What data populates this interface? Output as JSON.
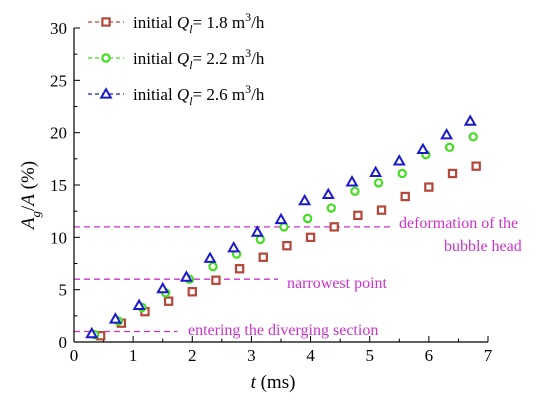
{
  "chart_data": {
    "type": "scatter",
    "xlabel": {
      "italic": "t",
      "unit": " (ms)"
    },
    "ylabel": {
      "A": "A",
      "sub": "g",
      "rest": "/",
      "A2": "A",
      "unit": " (%)"
    },
    "xlim": [
      0,
      7
    ],
    "ylim": [
      0,
      30
    ],
    "xticks": [
      0,
      1,
      2,
      3,
      4,
      5,
      6,
      7
    ],
    "yticks": [
      0,
      5,
      10,
      15,
      20,
      25,
      30
    ],
    "grid": false,
    "legend_position": "top-left",
    "series": [
      {
        "legend": {
          "prefix": "initial ",
          "var": "Q",
          "sub": "l",
          "eq": "= 1.8 m",
          "sup": "3",
          "tail": "/h"
        },
        "marker": "square",
        "color": "#b5473a",
        "x": [
          0.45,
          0.8,
          1.2,
          1.6,
          2.0,
          2.4,
          2.8,
          3.2,
          3.6,
          4.0,
          4.4,
          4.8,
          5.2,
          5.6,
          6.0,
          6.4,
          6.8
        ],
        "y": [
          0.6,
          1.8,
          2.9,
          3.9,
          4.8,
          5.9,
          7.0,
          8.1,
          9.2,
          10.0,
          11.0,
          12.1,
          12.6,
          13.9,
          14.8,
          16.1,
          16.8
        ]
      },
      {
        "legend": {
          "prefix": "initial ",
          "var": "Q",
          "sub": "l",
          "eq": "= 2.2 m",
          "sup": "3",
          "tail": "/h"
        },
        "marker": "circle",
        "color": "#44dd22",
        "x": [
          0.35,
          0.75,
          1.15,
          1.55,
          1.95,
          2.35,
          2.75,
          3.15,
          3.55,
          3.95,
          4.35,
          4.75,
          5.15,
          5.55,
          5.95,
          6.35,
          6.75
        ],
        "y": [
          0.7,
          2.0,
          3.3,
          4.7,
          6.0,
          7.2,
          8.4,
          9.8,
          11.0,
          11.8,
          12.8,
          14.4,
          15.2,
          16.1,
          17.9,
          18.6,
          19.6
        ]
      },
      {
        "legend": {
          "prefix": "initial ",
          "var": "Q",
          "sub": "l",
          "eq": "= 2.6 m",
          "sup": "3",
          "tail": "/h"
        },
        "marker": "triangle",
        "color": "#1a1acc",
        "x": [
          0.3,
          0.7,
          1.1,
          1.5,
          1.9,
          2.3,
          2.7,
          3.1,
          3.5,
          3.9,
          4.3,
          4.7,
          5.1,
          5.5,
          5.9,
          6.3,
          6.7
        ],
        "y": [
          0.8,
          2.2,
          3.5,
          5.1,
          6.2,
          8.0,
          9.0,
          10.5,
          11.7,
          13.5,
          14.1,
          15.3,
          16.2,
          17.3,
          18.4,
          19.8,
          21.1
        ]
      }
    ],
    "reference_lines": [
      {
        "y": 11,
        "x_end": 5.4,
        "label_lines": [
          "deformation of the",
          "bubble head"
        ],
        "color": "#cc33cc"
      },
      {
        "y": 6,
        "x_end": 3.45,
        "label_lines": [
          "narrowest point"
        ],
        "color": "#cc33cc"
      },
      {
        "y": 1,
        "x_end": 1.75,
        "label_lines": [
          "entering the diverging section"
        ],
        "color": "#cc33cc"
      }
    ]
  }
}
